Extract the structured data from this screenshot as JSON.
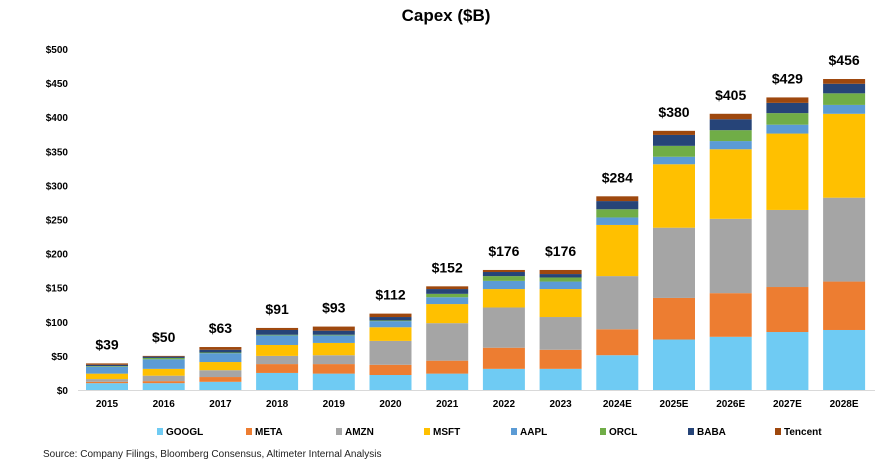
{
  "chart_data": {
    "type": "bar",
    "stacked": true,
    "title": "Capex ($B)",
    "xlabel": "",
    "ylabel": "",
    "ylim": [
      0,
      500
    ],
    "yticks": [
      "$0",
      "$50",
      "$100",
      "$150",
      "$200",
      "$250",
      "$300",
      "$350",
      "$400",
      "$450",
      "$500"
    ],
    "ytick_values": [
      0,
      50,
      100,
      150,
      200,
      250,
      300,
      350,
      400,
      450,
      500
    ],
    "grid": false,
    "legend_position": "bottom",
    "categories": [
      "2015",
      "2016",
      "2017",
      "2018",
      "2019",
      "2020",
      "2021",
      "2022",
      "2023",
      "2024E",
      "2025E",
      "2026E",
      "2027E",
      "2028E"
    ],
    "totals": [
      39,
      50,
      63,
      91,
      93,
      112,
      152,
      176,
      176,
      284,
      380,
      405,
      429,
      456
    ],
    "total_labels": [
      "$39",
      "$50",
      "$63",
      "$91",
      "$93",
      "$112",
      "$152",
      "$176",
      "$176",
      "$284",
      "$380",
      "$405",
      "$429",
      "$456"
    ],
    "series": [
      {
        "name": "GOOGL",
        "color": "#6FCBF3",
        "values": [
          10,
          10,
          12,
          25,
          24,
          22,
          24,
          31,
          31,
          51,
          74,
          78,
          85,
          88
        ]
      },
      {
        "name": "META",
        "color": "#ED7D31",
        "values": [
          2,
          3,
          7,
          13,
          14,
          15,
          19,
          31,
          28,
          38,
          61,
          64,
          66,
          71
        ]
      },
      {
        "name": "AMZN",
        "color": "#A5A5A5",
        "values": [
          4,
          8,
          10,
          12,
          13,
          35,
          55,
          59,
          48,
          78,
          103,
          109,
          113,
          123
        ]
      },
      {
        "name": "MSFT",
        "color": "#FFC000",
        "values": [
          8,
          10,
          12,
          16,
          18,
          20,
          28,
          27,
          41,
          75,
          93,
          102,
          112,
          123
        ]
      },
      {
        "name": "AAPL",
        "color": "#5B9BD5",
        "values": [
          10,
          14,
          13,
          14,
          11,
          9,
          10,
          12,
          11,
          11,
          11,
          12,
          13,
          13
        ]
      },
      {
        "name": "ORCL",
        "color": "#70AD47",
        "values": [
          1,
          2,
          1,
          1,
          1,
          1,
          5,
          7,
          6,
          12,
          16,
          16,
          17,
          17
        ]
      },
      {
        "name": "BABA",
        "color": "#264478",
        "values": [
          2,
          2,
          4,
          7,
          6,
          5,
          7,
          6,
          5,
          12,
          16,
          16,
          15,
          14
        ]
      },
      {
        "name": "Tencent",
        "color": "#9E480E",
        "values": [
          2,
          1,
          4,
          3,
          6,
          5,
          4,
          3,
          6,
          7,
          6,
          8,
          8,
          7
        ]
      }
    ]
  },
  "source": "Source: Company Filings, Bloomberg Consensus, Altimeter Internal Analysis"
}
